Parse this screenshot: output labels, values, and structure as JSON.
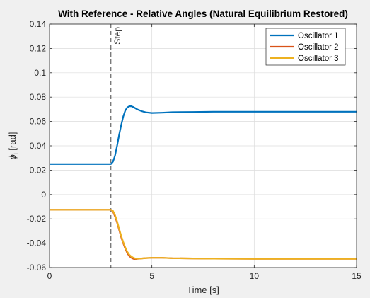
{
  "chart_data": {
    "type": "line",
    "title": "With Reference - Relative Angles (Natural Equilibrium Restored)",
    "xlabel": "Time [s]",
    "ylabel": "ϕ_i [rad]",
    "xlim": [
      0,
      15
    ],
    "ylim": [
      -0.06,
      0.14
    ],
    "xticks": [
      0,
      5,
      10,
      15
    ],
    "xtick_labels": [
      "0",
      "5",
      "10",
      "15"
    ],
    "yticks": [
      -0.06,
      -0.04,
      -0.02,
      0,
      0.02,
      0.04,
      0.06,
      0.08,
      0.1,
      0.12,
      0.14
    ],
    "ytick_labels": [
      "-0.06",
      "-0.04",
      "-0.02",
      "0",
      "0.02",
      "0.04",
      "0.06",
      "0.08",
      "0.1",
      "0.12",
      "0.14"
    ],
    "grid": true,
    "legend_position": "top-right",
    "annotation": {
      "label": "Step",
      "x": 3
    },
    "series": [
      {
        "name": "Oscillator 1",
        "color": "#0072bd",
        "x": [
          0,
          3.0,
          3.1,
          3.2,
          3.3,
          3.4,
          3.5,
          3.6,
          3.7,
          3.8,
          3.9,
          4.0,
          4.1,
          4.2,
          4.3,
          4.5,
          4.7,
          5.0,
          5.5,
          6,
          7,
          8,
          10,
          12,
          15
        ],
        "y": [
          0.025,
          0.025,
          0.027,
          0.032,
          0.04,
          0.049,
          0.057,
          0.064,
          0.069,
          0.0715,
          0.0725,
          0.0725,
          0.0718,
          0.0708,
          0.0698,
          0.0685,
          0.0675,
          0.067,
          0.0672,
          0.0676,
          0.0678,
          0.068,
          0.068,
          0.068,
          0.068
        ]
      },
      {
        "name": "Oscillator 2",
        "color": "#d95319",
        "x": [
          0,
          3.0,
          3.1,
          3.2,
          3.3,
          3.4,
          3.5,
          3.6,
          3.7,
          3.8,
          3.9,
          4.0,
          4.1,
          4.2,
          4.3,
          4.5,
          4.7,
          5.0,
          5.5,
          6,
          7,
          8,
          10,
          12,
          15
        ],
        "y": [
          -0.0125,
          -0.0125,
          -0.014,
          -0.018,
          -0.023,
          -0.029,
          -0.035,
          -0.04,
          -0.0445,
          -0.048,
          -0.0505,
          -0.052,
          -0.0528,
          -0.053,
          -0.0528,
          -0.0525,
          -0.0522,
          -0.052,
          -0.052,
          -0.0523,
          -0.0525,
          -0.0527,
          -0.0528,
          -0.0528,
          -0.0528
        ]
      },
      {
        "name": "Oscillator 3",
        "color": "#edb120",
        "x": [
          0,
          3.0,
          3.1,
          3.2,
          3.3,
          3.4,
          3.5,
          3.6,
          3.7,
          3.8,
          3.9,
          4.0,
          4.1,
          4.2,
          4.3,
          4.5,
          4.7,
          5.0,
          5.5,
          6,
          7,
          8,
          10,
          12,
          15
        ],
        "y": [
          -0.0125,
          -0.0125,
          -0.0135,
          -0.017,
          -0.022,
          -0.028,
          -0.034,
          -0.039,
          -0.0435,
          -0.047,
          -0.0495,
          -0.051,
          -0.052,
          -0.0526,
          -0.0527,
          -0.0525,
          -0.0522,
          -0.052,
          -0.052,
          -0.0523,
          -0.0525,
          -0.0527,
          -0.0528,
          -0.0528,
          -0.0528
        ]
      }
    ]
  }
}
